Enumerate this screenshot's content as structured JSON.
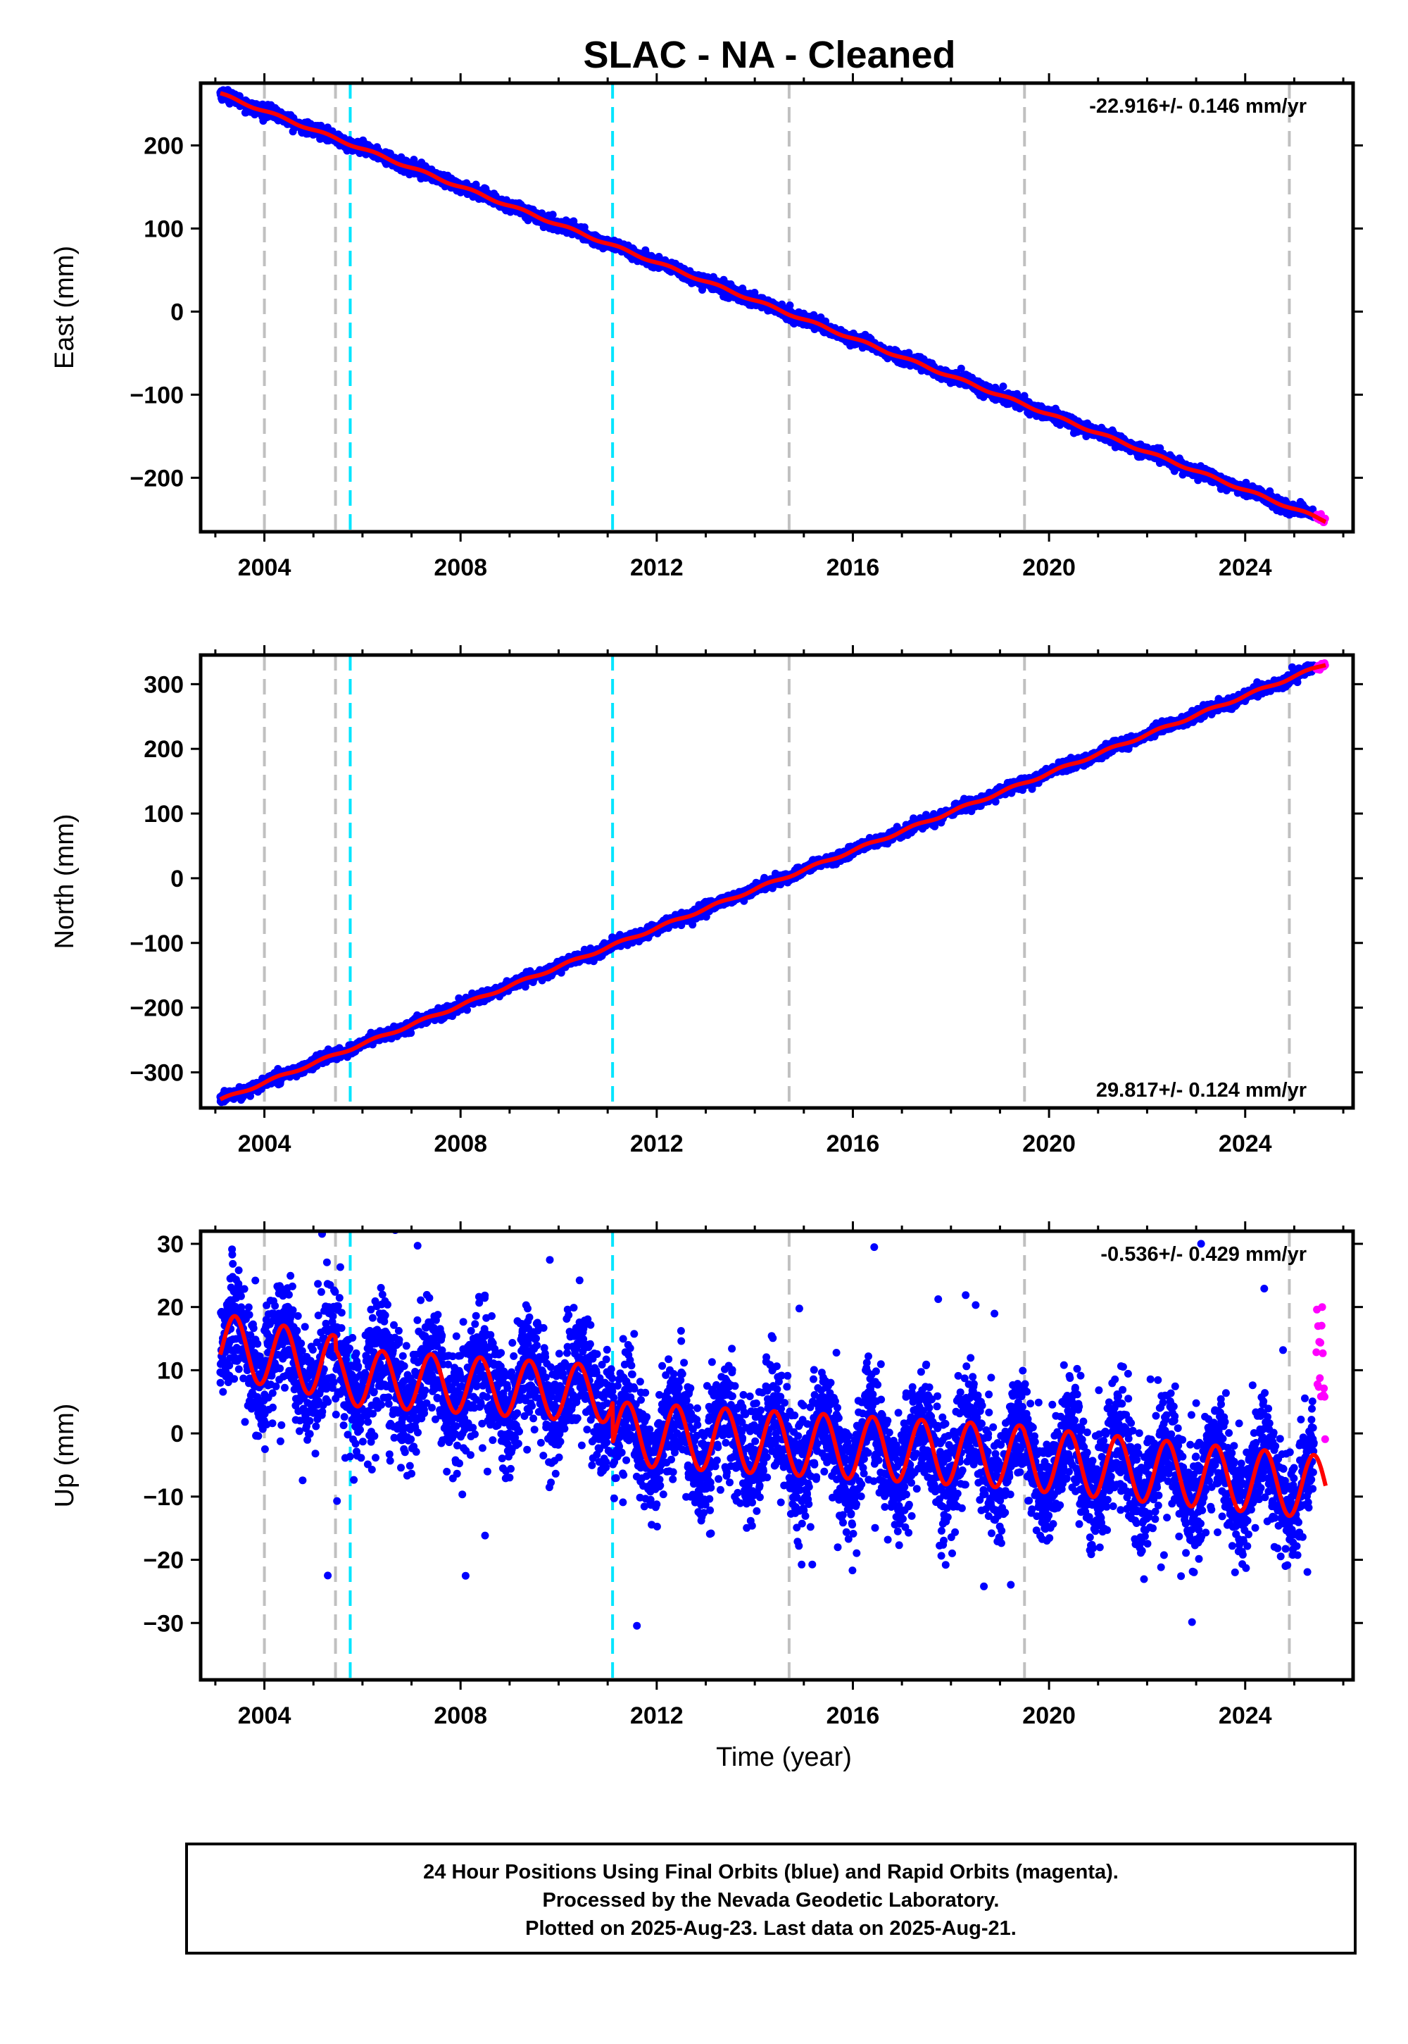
{
  "title": "SLAC  - NA - Cleaned",
  "footer": {
    "lines": [
      "24 Hour Positions Using Final Orbits (blue) and Rapid Orbits (magenta).",
      "Processed by the Nevada Geodetic Laboratory.",
      "Plotted on 2025-Aug-23. Last data on 2025-Aug-21."
    ]
  },
  "colors": {
    "final_orbits": "#0000ff",
    "rapid_orbits": "#ff00ff",
    "model_fit": "#ff0000",
    "event_line_gray": "#c0c0c0",
    "event_line_cyan": "#00e5ff",
    "frame": "#000000"
  },
  "chart_data": [
    {
      "type": "scatter",
      "panel": "east",
      "ylabel": "East (mm)",
      "xlabel": "",
      "xlim": [
        2002.7,
        2026.2
      ],
      "ylim": [
        -265,
        275
      ],
      "x_ticks": [
        2004,
        2008,
        2012,
        2016,
        2020,
        2024
      ],
      "y_ticks": [
        -200,
        -100,
        0,
        100,
        200
      ],
      "rate_text": "-22.916+/- 0.146 mm/yr",
      "rate_position": "top-right",
      "series": [
        {
          "kind": "final",
          "x_start": 2003.1,
          "x_end": 2025.4,
          "y_start": 262,
          "y_end": -248,
          "noise_mm": 3.5,
          "seasonal_amp_mm": 1.5
        },
        {
          "kind": "rapid",
          "x_start": 2025.45,
          "x_end": 2025.64,
          "y_start": -247,
          "y_end": -252,
          "noise_mm": 2.5
        }
      ],
      "fit": {
        "x_start": 2003.1,
        "x_end": 2025.64,
        "y_start": 262,
        "y_end": -252,
        "seasonal_amp_mm": 1.5
      },
      "event_lines": {
        "gray": [
          2004.0,
          2005.45,
          2014.7,
          2019.5,
          2024.9
        ],
        "cyan": [
          2005.75,
          2011.1
        ]
      }
    },
    {
      "type": "scatter",
      "panel": "north",
      "ylabel": "North (mm)",
      "xlabel": "",
      "xlim": [
        2002.7,
        2026.2
      ],
      "ylim": [
        -355,
        345
      ],
      "x_ticks": [
        2004,
        2008,
        2012,
        2016,
        2020,
        2024
      ],
      "y_ticks": [
        -300,
        -200,
        -100,
        0,
        100,
        200,
        300
      ],
      "rate_text": "29.817+/- 0.124 mm/yr",
      "rate_position": "bottom-right",
      "series": [
        {
          "kind": "final",
          "x_start": 2003.1,
          "x_end": 2025.4,
          "y_start": -343,
          "y_end": 322,
          "noise_mm": 4,
          "seasonal_amp_mm": 2
        },
        {
          "kind": "rapid",
          "x_start": 2025.45,
          "x_end": 2025.64,
          "y_start": 325,
          "y_end": 333,
          "noise_mm": 3
        }
      ],
      "fit": {
        "x_start": 2003.1,
        "x_end": 2025.64,
        "y_start": -343,
        "y_end": 331,
        "seasonal_amp_mm": 2
      },
      "event_lines": {
        "gray": [
          2004.0,
          2005.45,
          2014.7,
          2019.5,
          2024.9
        ],
        "cyan": [
          2005.75,
          2011.1
        ]
      }
    },
    {
      "type": "scatter",
      "panel": "up",
      "ylabel": "Up (mm)",
      "xlabel": "Time (year)",
      "xlim": [
        2002.7,
        2026.2
      ],
      "ylim": [
        -39,
        32
      ],
      "x_ticks": [
        2004,
        2008,
        2012,
        2016,
        2020,
        2024
      ],
      "y_ticks": [
        -30,
        -20,
        -10,
        0,
        10,
        20,
        30
      ],
      "rate_text": "-0.536+/- 0.429 mm/yr",
      "rate_position": "top-right",
      "series": [
        {
          "kind": "final",
          "x_start": 2003.1,
          "x_end": 2025.4,
          "noise_mm": 4.5,
          "outlier_spread_mm": 14
        },
        {
          "kind": "rapid",
          "x_start": 2025.45,
          "x_end": 2025.64,
          "y_min": -2,
          "y_max": 20
        }
      ],
      "fit_segments": [
        {
          "x_start": 2003.1,
          "x_end": 2005.45,
          "offset_mm": 14,
          "slope_mm_per_yr": -1.5,
          "seasonal_amp_mm": 5
        },
        {
          "x_start": 2005.45,
          "x_end": 2011.1,
          "offset_mm": 9,
          "slope_mm_per_yr": -0.5,
          "seasonal_amp_mm": 4.5
        },
        {
          "x_start": 2011.1,
          "x_end": 2019.5,
          "offset_mm": 0,
          "slope_mm_per_yr": -0.45,
          "seasonal_amp_mm": 5
        },
        {
          "x_start": 2019.5,
          "x_end": 2025.64,
          "offset_mm": -4,
          "slope_mm_per_yr": -0.75,
          "seasonal_amp_mm": 5
        }
      ],
      "event_lines": {
        "gray": [
          2004.0,
          2005.45,
          2014.7,
          2019.5,
          2024.9
        ],
        "cyan": [
          2005.75,
          2011.1
        ]
      }
    }
  ]
}
